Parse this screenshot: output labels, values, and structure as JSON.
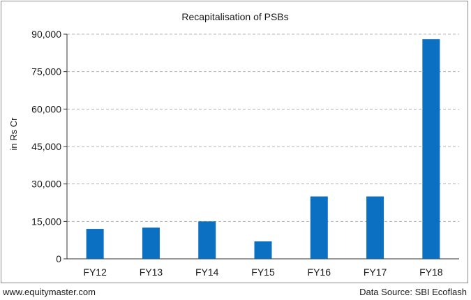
{
  "chart_data": {
    "type": "bar",
    "title": "Recapitalisation of PSBs",
    "xlabel": "",
    "ylabel": "in Rs Cr",
    "categories": [
      "FY12",
      "FY13",
      "FY14",
      "FY15",
      "FY16",
      "FY17",
      "FY18"
    ],
    "values": [
      12000,
      12500,
      15000,
      7000,
      25000,
      25000,
      88000
    ],
    "ylim": [
      0,
      90000
    ],
    "yticks": [
      0,
      15000,
      30000,
      45000,
      60000,
      75000,
      90000
    ],
    "ytick_labels": [
      "0",
      "15,000",
      "30,000",
      "45,000",
      "60,000",
      "75,000",
      "90,000"
    ],
    "grid": true,
    "legend": "none",
    "bar_color": "#0b6fc2",
    "grid_color": "#b3b3b3"
  },
  "footer": {
    "left": "www.equitymaster.com",
    "right": "Data Source: SBI Ecoflash"
  }
}
